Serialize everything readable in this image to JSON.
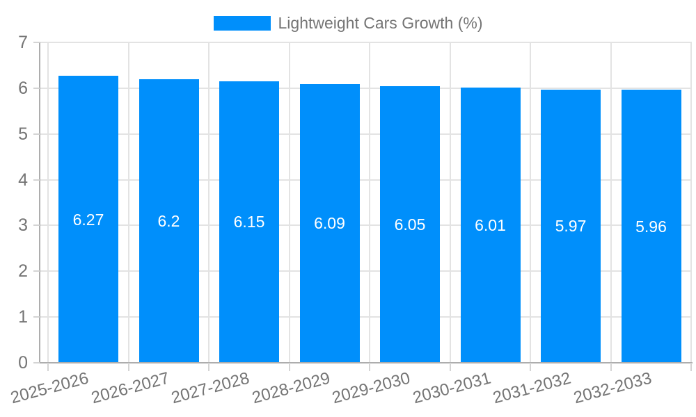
{
  "legend": {
    "label": "Lightweight Cars Growth (%)"
  },
  "colors": {
    "bar": "#008FFB",
    "bar_label": "#FFFFFF",
    "grid": "#E3E3E3",
    "axis": "#ADADAD",
    "tick": "#D4D4D4",
    "axis_label": "#757575"
  },
  "chart_data": {
    "type": "bar",
    "title": "Lightweight Cars Growth (%)",
    "series_name": "Lightweight Cars Growth (%)",
    "categories": [
      "2025-2026",
      "2026-2027",
      "2027-2028",
      "2028-2029",
      "2029-2030",
      "2030-2031",
      "2031-2032",
      "2032-2033"
    ],
    "values": [
      6.27,
      6.2,
      6.15,
      6.09,
      6.05,
      6.01,
      5.97,
      5.96
    ],
    "value_labels": [
      "6.27",
      "6.2",
      "6.15",
      "6.09",
      "6.05",
      "6.01",
      "5.97",
      "5.96"
    ],
    "xlabel": "",
    "ylabel": "",
    "ylim": [
      0,
      7
    ],
    "yticks": [
      0,
      1,
      2,
      3,
      4,
      5,
      6,
      7
    ],
    "grid": true,
    "grid_vertical": true,
    "legend_position": "top",
    "value_label_position": "center-inside",
    "x_label_rotation_deg": -15
  }
}
